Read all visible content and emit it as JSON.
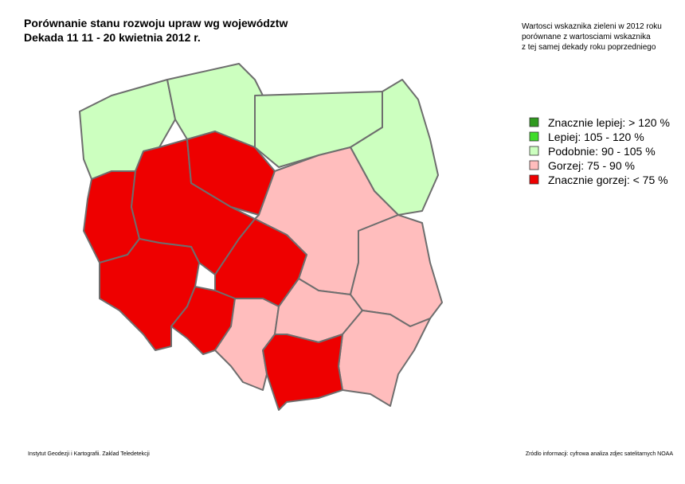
{
  "header": {
    "title": [
      "Porównanie stanu rozwoju upraw wg województw",
      "Dekada 11  11 - 20 kwietnia 2012 r."
    ],
    "note": [
      "Wartosci wskaznika zieleni w 2012 roku",
      "porównane z wartosciami wskaznika",
      "z tej samej dekady roku poprzedniego"
    ]
  },
  "legend": {
    "items": [
      {
        "label": "Znacznie lepiej: > 120 %",
        "color": "#2f9a1f"
      },
      {
        "label": "Lepiej: 105 - 120 %",
        "color": "#3fdc2a"
      },
      {
        "label": "Podobnie: 90 - 105 %",
        "color": "#ccffbf"
      },
      {
        "label": "Gorzej: 75 - 90 %",
        "color": "#ffbdbd"
      },
      {
        "label": "Znacznie gorzej: < 75 %",
        "color": "#ee0000"
      }
    ]
  },
  "footer": {
    "left": "Instytut Geodezji i Kartografii. Zaklad Teledetekcji",
    "right": "Zródlo informacji: cyfrowa analiza zdjec satelitarnych NOAA"
  }
}
